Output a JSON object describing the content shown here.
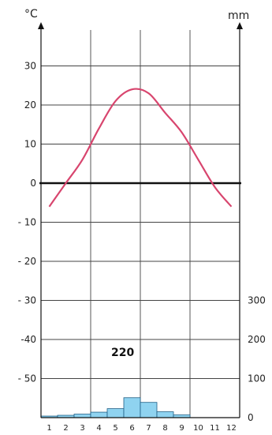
{
  "chart_data": {
    "type": "climate_diagram",
    "title": "",
    "left_axis_unit": "°C",
    "right_axis_unit": "mm",
    "months": [
      "1",
      "2",
      "3",
      "4",
      "5",
      "6",
      "7",
      "8",
      "9",
      "10",
      "11",
      "12"
    ],
    "temperature": {
      "name": "",
      "color": "#d8456e",
      "values": [
        -6,
        0,
        6,
        14,
        21,
        24,
        23,
        18,
        13,
        6,
        -1,
        -6
      ]
    },
    "precipitation": {
      "name": "",
      "color": "#8fd3f0",
      "values": [
        4,
        6,
        9,
        14,
        23,
        51,
        39,
        15,
        7,
        0,
        0,
        0
      ]
    },
    "temp_ticks": [
      30,
      20,
      10,
      0,
      -10,
      -20,
      -30,
      -40,
      -50
    ],
    "temp_tick_labels": [
      "30",
      "20",
      "10",
      "0",
      "- 10",
      "- 20",
      "- 30",
      "-40",
      "- 50"
    ],
    "precip_ticks": [
      300,
      200,
      100,
      0
    ],
    "precip_tick_labels": [
      "300",
      "200",
      "100",
      "0"
    ],
    "ylim_temp": [
      -60,
      40
    ],
    "ylim_precip": [
      0,
      400
    ],
    "annotation": "220",
    "grid": true
  }
}
